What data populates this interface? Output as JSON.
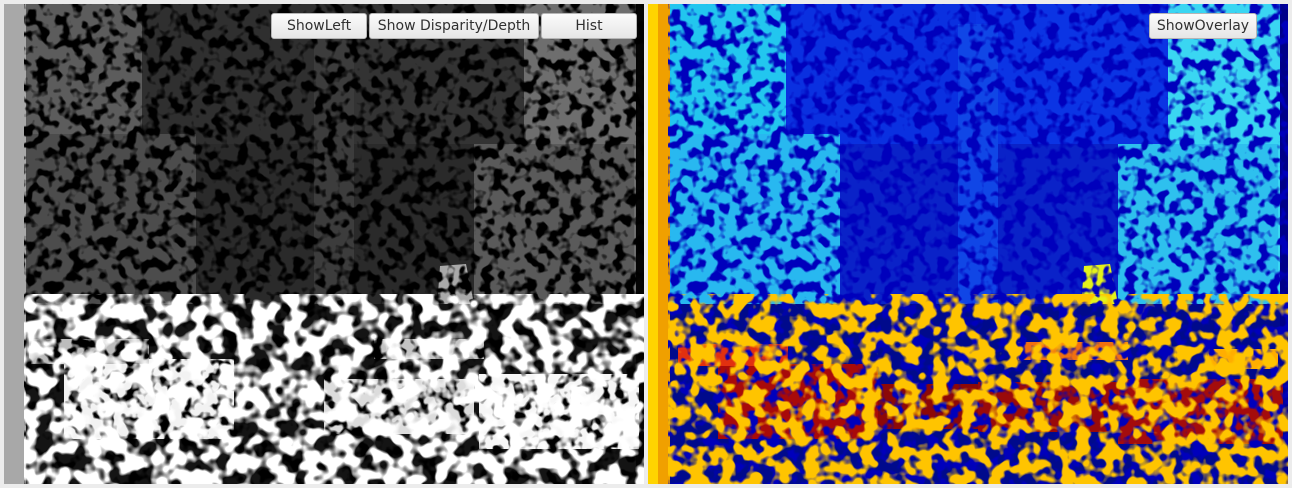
{
  "left_panel": {
    "buttons": {
      "show_left": "ShowLeft",
      "show_disparity": "Show Disparity/Depth",
      "hist": "Hist"
    },
    "colormap": "grayscale"
  },
  "right_panel": {
    "buttons": {
      "show_overlay": "ShowOverlay"
    },
    "colormap": "jet"
  },
  "colors": {
    "window_bg": "#ececec",
    "button_bg": "#f2f2f2",
    "button_border": "#b5b5b5",
    "button_text": "#303030"
  }
}
